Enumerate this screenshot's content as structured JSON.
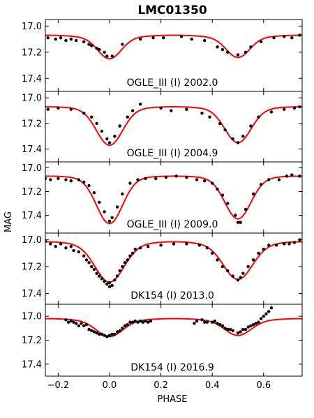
{
  "title": "LMC01350",
  "xlabel": "PHASE",
  "ylabel": "MAG",
  "xlim": [
    -0.25,
    0.75
  ],
  "x_ticks": [
    -0.2,
    0.0,
    0.2,
    0.4,
    0.6
  ],
  "x_tick_labels": [
    "−0.2",
    "0.0",
    "0.2",
    "0.4",
    "0.6"
  ],
  "colors": {
    "model": "#ff0000",
    "points": "#000000",
    "frame": "#000000"
  },
  "chart_data": [
    {
      "type": "scatter",
      "label": "OGLE_III (I) 2002.0",
      "ylim": [
        17.5,
        16.95
      ],
      "y_ticks": [
        17.0,
        17.2,
        17.4
      ],
      "y_tick_labels": [
        "17.0",
        "17.2",
        "17.4"
      ],
      "model": {
        "baseline": 17.08,
        "primary_depth": 0.16,
        "secondary_depth": 0.15,
        "width": 0.045,
        "curvature": 0.02
      },
      "points": [
        [
          -0.24,
          17.09
        ],
        [
          -0.21,
          17.1
        ],
        [
          -0.19,
          17.09
        ],
        [
          -0.17,
          17.11
        ],
        [
          -0.15,
          17.1
        ],
        [
          -0.13,
          17.11
        ],
        [
          -0.1,
          17.12
        ],
        [
          -0.08,
          17.14
        ],
        [
          -0.07,
          17.15
        ],
        [
          -0.05,
          17.17
        ],
        [
          -0.04,
          17.18
        ],
        [
          -0.02,
          17.2
        ],
        [
          -0.01,
          17.23
        ],
        [
          0.01,
          17.23
        ],
        [
          0.05,
          17.14
        ],
        [
          0.12,
          17.1
        ],
        [
          0.17,
          17.09
        ],
        [
          0.21,
          17.09
        ],
        [
          0.28,
          17.08
        ],
        [
          0.32,
          17.1
        ],
        [
          0.37,
          17.11
        ],
        [
          0.42,
          17.16
        ],
        [
          0.44,
          17.18
        ],
        [
          0.46,
          17.2
        ],
        [
          0.5,
          17.22
        ],
        [
          0.53,
          17.2
        ],
        [
          0.55,
          17.16
        ],
        [
          0.59,
          17.12
        ],
        [
          0.64,
          17.09
        ],
        [
          0.68,
          17.08
        ],
        [
          0.71,
          17.09
        ],
        [
          0.74,
          17.07
        ]
      ]
    },
    {
      "type": "scatter",
      "label": "OGLE_III (I) 2004.9",
      "ylim": [
        17.5,
        16.95
      ],
      "y_ticks": [
        17.0,
        17.2,
        17.4
      ],
      "y_tick_labels": [
        "17.0",
        "17.2",
        "17.4"
      ],
      "model": {
        "baseline": 17.08,
        "primary_depth": 0.28,
        "secondary_depth": 0.26,
        "width": 0.05,
        "curvature": 0.02
      },
      "points": [
        [
          -0.24,
          17.09
        ],
        [
          -0.2,
          17.08
        ],
        [
          -0.15,
          17.09
        ],
        [
          -0.1,
          17.12
        ],
        [
          -0.07,
          17.15
        ],
        [
          -0.05,
          17.2
        ],
        [
          -0.03,
          17.26
        ],
        [
          -0.01,
          17.32
        ],
        [
          0.0,
          17.35
        ],
        [
          0.02,
          17.3
        ],
        [
          0.04,
          17.22
        ],
        [
          0.07,
          17.15
        ],
        [
          0.09,
          17.1
        ],
        [
          0.12,
          17.05
        ],
        [
          0.2,
          17.08
        ],
        [
          0.24,
          17.1
        ],
        [
          0.3,
          17.09
        ],
        [
          0.36,
          17.12
        ],
        [
          0.39,
          17.15
        ],
        [
          0.43,
          17.2
        ],
        [
          0.45,
          17.25
        ],
        [
          0.48,
          17.32
        ],
        [
          0.5,
          17.35
        ],
        [
          0.52,
          17.3
        ],
        [
          0.55,
          17.22
        ],
        [
          0.58,
          17.15
        ],
        [
          0.63,
          17.11
        ],
        [
          0.68,
          17.09
        ],
        [
          0.72,
          17.08
        ],
        [
          0.74,
          17.07
        ]
      ]
    },
    {
      "type": "scatter",
      "label": "OGLE_III (I) 2009.0",
      "ylim": [
        17.55,
        16.95
      ],
      "y_ticks": [
        17.0,
        17.2,
        17.4
      ],
      "y_tick_labels": [
        "17.0",
        "17.2",
        "17.4"
      ],
      "model": {
        "baseline": 17.08,
        "primary_depth": 0.38,
        "secondary_depth": 0.34,
        "width": 0.05,
        "curvature": 0.02
      },
      "points": [
        [
          -0.25,
          17.09
        ],
        [
          -0.23,
          17.1
        ],
        [
          -0.2,
          17.09
        ],
        [
          -0.17,
          17.1
        ],
        [
          -0.15,
          17.11
        ],
        [
          -0.12,
          17.1
        ],
        [
          -0.1,
          17.12
        ],
        [
          -0.08,
          17.15
        ],
        [
          -0.06,
          17.21
        ],
        [
          -0.04,
          17.29
        ],
        [
          -0.02,
          17.37
        ],
        [
          0.0,
          17.45
        ],
        [
          0.01,
          17.42
        ],
        [
          0.03,
          17.33
        ],
        [
          0.05,
          17.22
        ],
        [
          0.08,
          17.13
        ],
        [
          0.11,
          17.1
        ],
        [
          0.14,
          17.09
        ],
        [
          0.18,
          17.09
        ],
        [
          0.22,
          17.08
        ],
        [
          0.26,
          17.07
        ],
        [
          0.3,
          17.08
        ],
        [
          0.34,
          17.1
        ],
        [
          0.37,
          17.11
        ],
        [
          0.4,
          17.13
        ],
        [
          0.42,
          17.18
        ],
        [
          0.44,
          17.23
        ],
        [
          0.46,
          17.3
        ],
        [
          0.49,
          17.4
        ],
        [
          0.5,
          17.46
        ],
        [
          0.51,
          17.46
        ],
        [
          0.53,
          17.35
        ],
        [
          0.56,
          17.22
        ],
        [
          0.59,
          17.14
        ],
        [
          0.62,
          17.1
        ],
        [
          0.66,
          17.1
        ],
        [
          0.69,
          17.07
        ],
        [
          0.71,
          17.06
        ],
        [
          0.74,
          17.07
        ]
      ]
    },
    {
      "type": "scatter",
      "label": "DK154 (I) 2013.0",
      "ylim": [
        17.48,
        16.95
      ],
      "y_ticks": [
        17.0,
        17.2,
        17.4
      ],
      "y_tick_labels": [
        "17.0",
        "17.2",
        "17.4"
      ],
      "model": {
        "baseline": 17.03,
        "primary_depth": 0.27,
        "secondary_depth": 0.25,
        "width": 0.055,
        "curvature": 0.03
      },
      "points": [
        [
          -0.25,
          17.01
        ],
        [
          -0.23,
          17.03
        ],
        [
          -0.21,
          17.05
        ],
        [
          -0.19,
          17.03
        ],
        [
          -0.17,
          17.06
        ],
        [
          -0.15,
          17.05
        ],
        [
          -0.14,
          17.08
        ],
        [
          -0.12,
          17.09
        ],
        [
          -0.1,
          17.12
        ],
        [
          -0.09,
          17.15
        ],
        [
          -0.08,
          17.17
        ],
        [
          -0.07,
          17.2
        ],
        [
          -0.06,
          17.22
        ],
        [
          -0.05,
          17.25
        ],
        [
          -0.04,
          17.27
        ],
        [
          -0.03,
          17.29
        ],
        [
          -0.02,
          17.31
        ],
        [
          -0.01,
          17.33
        ],
        [
          0.0,
          17.35
        ],
        [
          0.0,
          17.32
        ],
        [
          0.01,
          17.34
        ],
        [
          0.02,
          17.3
        ],
        [
          0.03,
          17.27
        ],
        [
          0.04,
          17.23
        ],
        [
          0.05,
          17.2
        ],
        [
          0.06,
          17.17
        ],
        [
          0.07,
          17.15
        ],
        [
          0.08,
          17.12
        ],
        [
          0.09,
          17.1
        ],
        [
          0.1,
          17.07
        ],
        [
          0.12,
          17.06
        ],
        [
          0.15,
          17.05
        ],
        [
          0.2,
          17.04
        ],
        [
          0.25,
          17.03
        ],
        [
          0.3,
          17.03
        ],
        [
          0.35,
          17.04
        ],
        [
          0.38,
          17.06
        ],
        [
          0.4,
          17.1
        ],
        [
          0.42,
          17.15
        ],
        [
          0.44,
          17.2
        ],
        [
          0.46,
          17.23
        ],
        [
          0.48,
          17.27
        ],
        [
          0.5,
          17.3
        ],
        [
          0.51,
          17.28
        ],
        [
          0.52,
          17.25
        ],
        [
          0.54,
          17.2
        ],
        [
          0.56,
          17.15
        ],
        [
          0.58,
          17.1
        ],
        [
          0.6,
          17.07
        ],
        [
          0.62,
          17.04
        ],
        [
          0.65,
          17.04
        ],
        [
          0.68,
          17.03
        ],
        [
          0.7,
          17.03
        ],
        [
          0.72,
          17.02
        ],
        [
          0.74,
          17.0
        ]
      ]
    },
    {
      "type": "scatter",
      "label": "DK154 (I) 2016.9",
      "ylim": [
        17.5,
        16.9
      ],
      "y_ticks": [
        17.0,
        17.2,
        17.4
      ],
      "y_tick_labels": [
        "17.0",
        "17.2",
        "17.4"
      ],
      "model": {
        "baseline": 17.03,
        "primary_depth": 0.13,
        "secondary_depth": 0.12,
        "width": 0.05,
        "curvature": 0.02
      },
      "points": [
        [
          -0.17,
          17.03
        ],
        [
          -0.16,
          17.05
        ],
        [
          -0.15,
          17.04
        ],
        [
          -0.14,
          17.05
        ],
        [
          -0.13,
          17.06
        ],
        [
          -0.12,
          17.08
        ],
        [
          -0.11,
          17.06
        ],
        [
          -0.1,
          17.08
        ],
        [
          -0.09,
          17.07
        ],
        [
          -0.08,
          17.11
        ],
        [
          -0.07,
          17.12
        ],
        [
          -0.06,
          17.13
        ],
        [
          -0.05,
          17.14
        ],
        [
          -0.04,
          17.15
        ],
        [
          -0.03,
          17.15
        ],
        [
          -0.02,
          17.16
        ],
        [
          -0.01,
          17.17
        ],
        [
          0.0,
          17.16
        ],
        [
          0.01,
          17.15
        ],
        [
          0.02,
          17.15
        ],
        [
          0.03,
          17.13
        ],
        [
          0.04,
          17.12
        ],
        [
          0.05,
          17.1
        ],
        [
          0.06,
          17.08
        ],
        [
          0.07,
          17.07
        ],
        [
          0.08,
          17.05
        ],
        [
          0.09,
          17.05
        ],
        [
          0.1,
          17.04
        ],
        [
          0.11,
          17.05
        ],
        [
          0.12,
          17.04
        ],
        [
          0.13,
          17.05
        ],
        [
          0.14,
          17.04
        ],
        [
          0.15,
          17.05
        ],
        [
          0.16,
          17.04
        ],
        [
          0.33,
          17.06
        ],
        [
          0.34,
          17.04
        ],
        [
          0.36,
          17.03
        ],
        [
          0.37,
          17.05
        ],
        [
          0.38,
          17.05
        ],
        [
          0.4,
          17.05
        ],
        [
          0.41,
          17.04
        ],
        [
          0.42,
          17.06
        ],
        [
          0.43,
          17.07
        ],
        [
          0.44,
          17.08
        ],
        [
          0.45,
          17.1
        ],
        [
          0.46,
          17.11
        ],
        [
          0.47,
          17.11
        ],
        [
          0.48,
          17.12
        ],
        [
          0.5,
          17.14
        ],
        [
          0.51,
          17.13
        ],
        [
          0.52,
          17.11
        ],
        [
          0.53,
          17.11
        ],
        [
          0.54,
          17.09
        ],
        [
          0.55,
          17.08
        ],
        [
          0.56,
          17.07
        ],
        [
          0.57,
          17.06
        ],
        [
          0.58,
          17.05
        ],
        [
          0.59,
          17.02
        ],
        [
          0.6,
          17.0
        ],
        [
          0.61,
          16.98
        ],
        [
          0.62,
          16.96
        ],
        [
          0.63,
          16.93
        ]
      ]
    }
  ]
}
